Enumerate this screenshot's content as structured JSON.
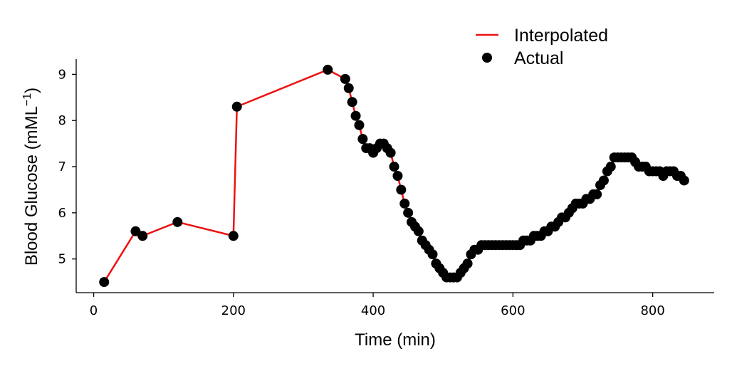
{
  "chart_data": {
    "type": "line",
    "xlabel": "Time (min)",
    "ylabel_main": "Blood Glucose  (mML",
    "ylabel_sup": "−1",
    "ylabel_close": ")",
    "xlim": [
      -25,
      888
    ],
    "ylim": [
      4.27,
      9.33
    ],
    "xticks": [
      0,
      200,
      400,
      600,
      800
    ],
    "yticks": [
      5,
      6,
      7,
      8,
      9
    ],
    "grid": false,
    "legend_position": "top-right",
    "legend": [
      {
        "label": "Interpolated",
        "style": "line",
        "color": "#ee1111"
      },
      {
        "label": "Actual",
        "style": "marker",
        "color": "#000000"
      }
    ],
    "colors": {
      "interpolated": "#ee1111",
      "actual": "#000000"
    },
    "points": [
      [
        15,
        4.5
      ],
      [
        60,
        5.6
      ],
      [
        70,
        5.5
      ],
      [
        120,
        5.8
      ],
      [
        200,
        5.5
      ],
      [
        205,
        8.3
      ],
      [
        335,
        9.1
      ],
      [
        360,
        8.9
      ],
      [
        365,
        8.7
      ],
      [
        370,
        8.4
      ],
      [
        375,
        8.1
      ],
      [
        380,
        7.9
      ],
      [
        385,
        7.6
      ],
      [
        390,
        7.4
      ],
      [
        395,
        7.4
      ],
      [
        400,
        7.3
      ],
      [
        405,
        7.4
      ],
      [
        410,
        7.5
      ],
      [
        415,
        7.5
      ],
      [
        420,
        7.4
      ],
      [
        425,
        7.3
      ],
      [
        430,
        7.0
      ],
      [
        435,
        6.8
      ],
      [
        440,
        6.5
      ],
      [
        445,
        6.2
      ],
      [
        450,
        6.0
      ],
      [
        455,
        5.8
      ],
      [
        460,
        5.7
      ],
      [
        465,
        5.6
      ],
      [
        470,
        5.4
      ],
      [
        475,
        5.3
      ],
      [
        480,
        5.2
      ],
      [
        485,
        5.1
      ],
      [
        490,
        4.9
      ],
      [
        495,
        4.8
      ],
      [
        500,
        4.7
      ],
      [
        505,
        4.6
      ],
      [
        510,
        4.6
      ],
      [
        515,
        4.6
      ],
      [
        520,
        4.6
      ],
      [
        525,
        4.7
      ],
      [
        530,
        4.8
      ],
      [
        535,
        4.9
      ],
      [
        540,
        5.1
      ],
      [
        545,
        5.2
      ],
      [
        550,
        5.2
      ],
      [
        555,
        5.3
      ],
      [
        560,
        5.3
      ],
      [
        565,
        5.3
      ],
      [
        570,
        5.3
      ],
      [
        575,
        5.3
      ],
      [
        580,
        5.3
      ],
      [
        585,
        5.3
      ],
      [
        590,
        5.3
      ],
      [
        595,
        5.3
      ],
      [
        600,
        5.3
      ],
      [
        605,
        5.3
      ],
      [
        610,
        5.3
      ],
      [
        615,
        5.4
      ],
      [
        620,
        5.4
      ],
      [
        625,
        5.4
      ],
      [
        630,
        5.5
      ],
      [
        635,
        5.5
      ],
      [
        640,
        5.5
      ],
      [
        645,
        5.6
      ],
      [
        650,
        5.6
      ],
      [
        655,
        5.7
      ],
      [
        660,
        5.7
      ],
      [
        665,
        5.8
      ],
      [
        670,
        5.9
      ],
      [
        675,
        5.9
      ],
      [
        680,
        6.0
      ],
      [
        685,
        6.1
      ],
      [
        690,
        6.2
      ],
      [
        695,
        6.2
      ],
      [
        700,
        6.2
      ],
      [
        705,
        6.3
      ],
      [
        710,
        6.3
      ],
      [
        715,
        6.4
      ],
      [
        720,
        6.4
      ],
      [
        725,
        6.6
      ],
      [
        730,
        6.7
      ],
      [
        735,
        6.9
      ],
      [
        740,
        7.0
      ],
      [
        745,
        7.2
      ],
      [
        750,
        7.2
      ],
      [
        755,
        7.2
      ],
      [
        760,
        7.2
      ],
      [
        765,
        7.2
      ],
      [
        770,
        7.2
      ],
      [
        775,
        7.1
      ],
      [
        780,
        7.0
      ],
      [
        785,
        7.0
      ],
      [
        790,
        7.0
      ],
      [
        795,
        6.9
      ],
      [
        800,
        6.9
      ],
      [
        805,
        6.9
      ],
      [
        810,
        6.9
      ],
      [
        815,
        6.8
      ],
      [
        820,
        6.9
      ],
      [
        825,
        6.9
      ],
      [
        830,
        6.9
      ],
      [
        835,
        6.8
      ],
      [
        840,
        6.8
      ],
      [
        845,
        6.7
      ]
    ]
  }
}
